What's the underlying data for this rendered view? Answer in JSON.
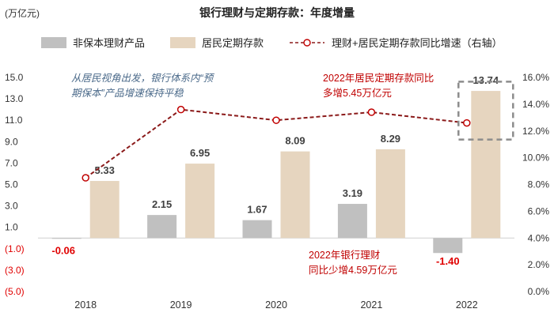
{
  "chart_data": {
    "type": "bar+line",
    "title": "银行理财与定期存款：年度增量",
    "ylabel_left": "(万亿元)",
    "categories": [
      "2018",
      "2019",
      "2020",
      "2021",
      "2022"
    ],
    "y_left": {
      "range": [
        -5,
        15
      ],
      "ticks": [
        15,
        13,
        11,
        9,
        7,
        5,
        3,
        1,
        -1,
        -3,
        -5
      ],
      "tick_labels": [
        "15.0",
        "13.0",
        "11.0",
        "9.0",
        "7.0",
        "5.0",
        "3.0",
        "1.0",
        "(1.0)",
        "(3.0)",
        "(5.0)"
      ]
    },
    "y_right": {
      "range": [
        0,
        16
      ],
      "ticks": [
        16,
        14,
        12,
        10,
        8,
        6,
        4,
        2,
        0
      ],
      "tick_labels": [
        "16.0%",
        "14.0%",
        "12.0%",
        "10.0%",
        "8.0%",
        "6.0%",
        "4.0%",
        "2.0%",
        "0.0%"
      ]
    },
    "series": [
      {
        "name": "非保本理财产品",
        "type": "bar",
        "color": "#c0c0c0",
        "values": [
          -0.06,
          2.15,
          1.67,
          3.19,
          -1.4
        ],
        "labels": [
          "-0.06",
          "2.15",
          "1.67",
          "3.19",
          "-1.40"
        ]
      },
      {
        "name": "居民定期存款",
        "type": "bar",
        "color": "#e6d5bf",
        "values": [
          5.33,
          6.95,
          8.09,
          8.29,
          13.74
        ],
        "labels": [
          "5.33",
          "6.95",
          "8.09",
          "8.29",
          "13.74"
        ]
      },
      {
        "name": "理财+居民定期存款同比增速（右轴）",
        "type": "line",
        "axis": "right",
        "color": "#8b1a1a",
        "values": [
          8.5,
          13.6,
          12.8,
          13.4,
          12.6
        ]
      }
    ],
    "annotations": {
      "note1": [
        "从居民视角出发，银行体系内“预",
        "期保本”产品增速保持平稳"
      ],
      "note2": [
        "2022年居民定期存款同比",
        "多增5.45万亿元"
      ],
      "note3": [
        "2022年银行理财",
        "同比少增4.59万亿元"
      ]
    }
  },
  "colors": {
    "negative_label": "#e00000",
    "label_dark": "#404040",
    "axis_text": "#333333",
    "highlight_box": "#8c8c8c"
  }
}
